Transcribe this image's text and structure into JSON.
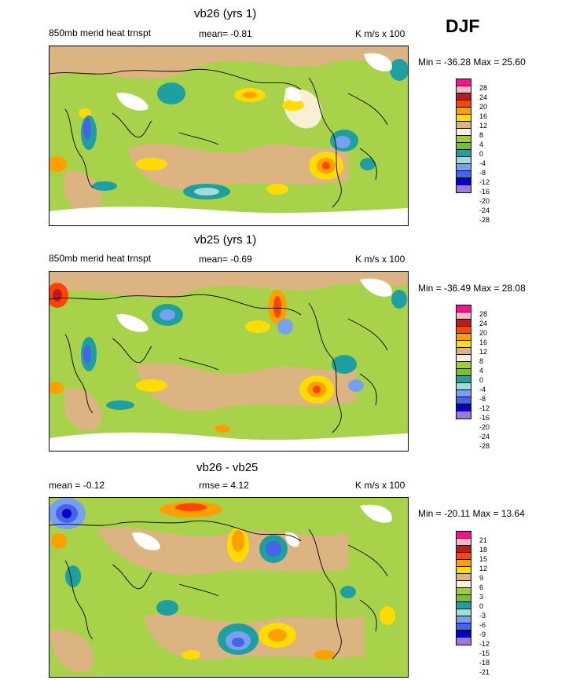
{
  "season": "DJF",
  "panels": [
    {
      "title": "vb26 (yrs 1)",
      "left": "850mb merid heat trnspt",
      "center": "mean=  -0.81",
      "right": "K m/s x 100",
      "minmax": "Min = -36.28 Max =  25.60",
      "levels": [
        "28",
        "24",
        "20",
        "16",
        "12",
        "8",
        "4",
        "0",
        "-4",
        "-8",
        "-12",
        "-16",
        "-20",
        "-24",
        "-28"
      ]
    },
    {
      "title": "vb25 (yrs 1)",
      "left": "850mb merid heat trnspt",
      "center": "mean=  -0.69",
      "right": "K m/s x 100",
      "minmax": "Min = -36.49 Max =  28.08",
      "levels": [
        "28",
        "24",
        "20",
        "16",
        "12",
        "8",
        "4",
        "0",
        "-4",
        "-8",
        "-12",
        "-16",
        "-20",
        "-24",
        "-28"
      ]
    },
    {
      "title": "vb26 - vb25",
      "left": "mean =  -0.12",
      "center": "rmse =   4.12",
      "right": "K m/s x 100",
      "minmax": "Min = -20.11 Max =  13.64",
      "levels": [
        "21",
        "18",
        "15",
        "12",
        "9",
        "6",
        "3",
        "0",
        "-3",
        "-6",
        "-9",
        "-12",
        "-15",
        "-18",
        "-21"
      ]
    }
  ],
  "colors": {
    "scale": [
      "#ff0f96",
      "#ffb4c8",
      "#b41e1e",
      "#ff4600",
      "#ffa000",
      "#ffdc00",
      "#dcb482",
      "#f8f0d2",
      "#a0cc3c",
      "#78be3c",
      "#1ea0a0",
      "#a0dcdc",
      "#78a0f0",
      "#4664e6",
      "#0000c8",
      "#a078dc"
    ],
    "land_outline": "#000000",
    "masked": "#ffffff"
  }
}
